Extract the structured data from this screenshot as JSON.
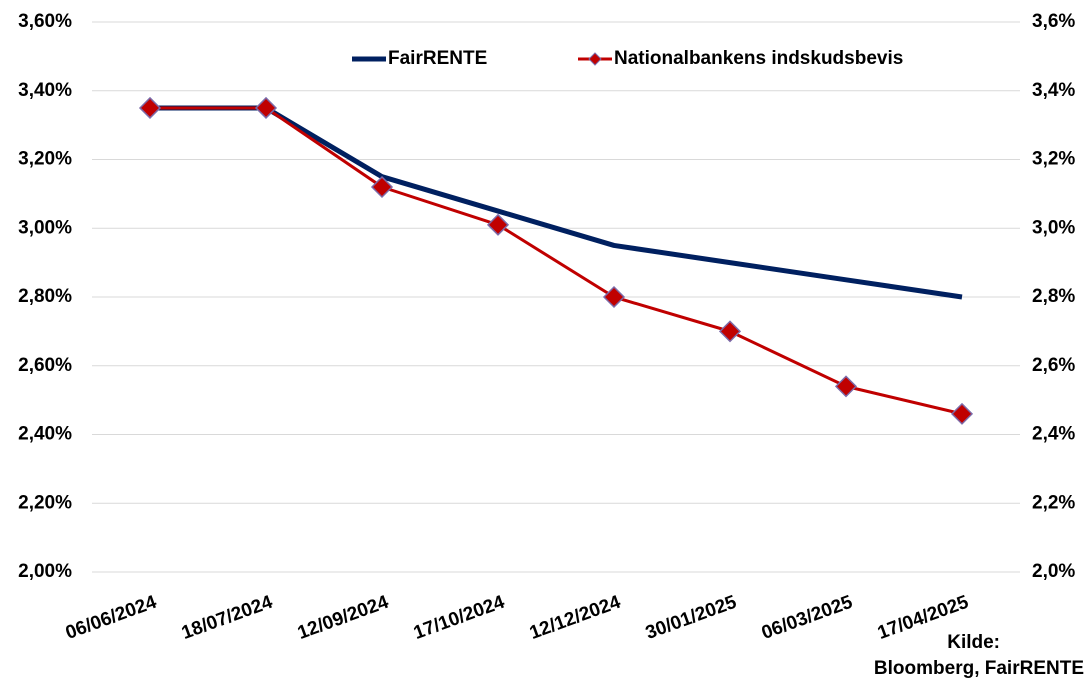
{
  "chart_data": {
    "type": "line",
    "categories": [
      "06/06/2024",
      "18/07/2024",
      "12/09/2024",
      "17/10/2024",
      "12/12/2024",
      "30/01/2025",
      "06/03/2025",
      "17/04/2025"
    ],
    "series": [
      {
        "name": "FairRENTE",
        "color": "#002060",
        "values": [
          3.35,
          3.35,
          3.15,
          3.05,
          2.95,
          2.9,
          2.85,
          2.8
        ]
      },
      {
        "name": "Nationalbankens indskudsbevis",
        "color": "#c00000",
        "marker": "diamond",
        "values": [
          3.35,
          3.35,
          3.12,
          3.01,
          2.8,
          2.7,
          2.54,
          2.46
        ]
      }
    ],
    "ylim": [
      2.0,
      3.6
    ],
    "yticks": [
      {
        "value": 2.0,
        "label": "2,00%"
      },
      {
        "value": 2.2,
        "label": "2,20%"
      },
      {
        "value": 2.4,
        "label": "2,40%"
      },
      {
        "value": 2.6,
        "label": "2,60%"
      },
      {
        "value": 2.8,
        "label": "2,80%"
      },
      {
        "value": 3.0,
        "label": "3,00%"
      },
      {
        "value": 3.2,
        "label": "3,20%"
      },
      {
        "value": 3.4,
        "label": "3,40%"
      },
      {
        "value": 3.6,
        "label": "3,60%"
      }
    ],
    "y2lim": [
      2.0,
      3.6
    ],
    "y2ticks": [
      {
        "value": 2.0,
        "label": "2,0%"
      },
      {
        "value": 2.2,
        "label": "2,2%"
      },
      {
        "value": 2.4,
        "label": "2,4%"
      },
      {
        "value": 2.6,
        "label": "2,6%"
      },
      {
        "value": 2.8,
        "label": "2,8%"
      },
      {
        "value": 3.0,
        "label": "3,0%"
      },
      {
        "value": 3.2,
        "label": "3,2%"
      },
      {
        "value": 3.4,
        "label": "3,4%"
      },
      {
        "value": 3.6,
        "label": "3,6%"
      }
    ],
    "grid": true,
    "legend": "top",
    "source": [
      "Kilde:",
      "Bloomberg, FairRENTE"
    ]
  }
}
